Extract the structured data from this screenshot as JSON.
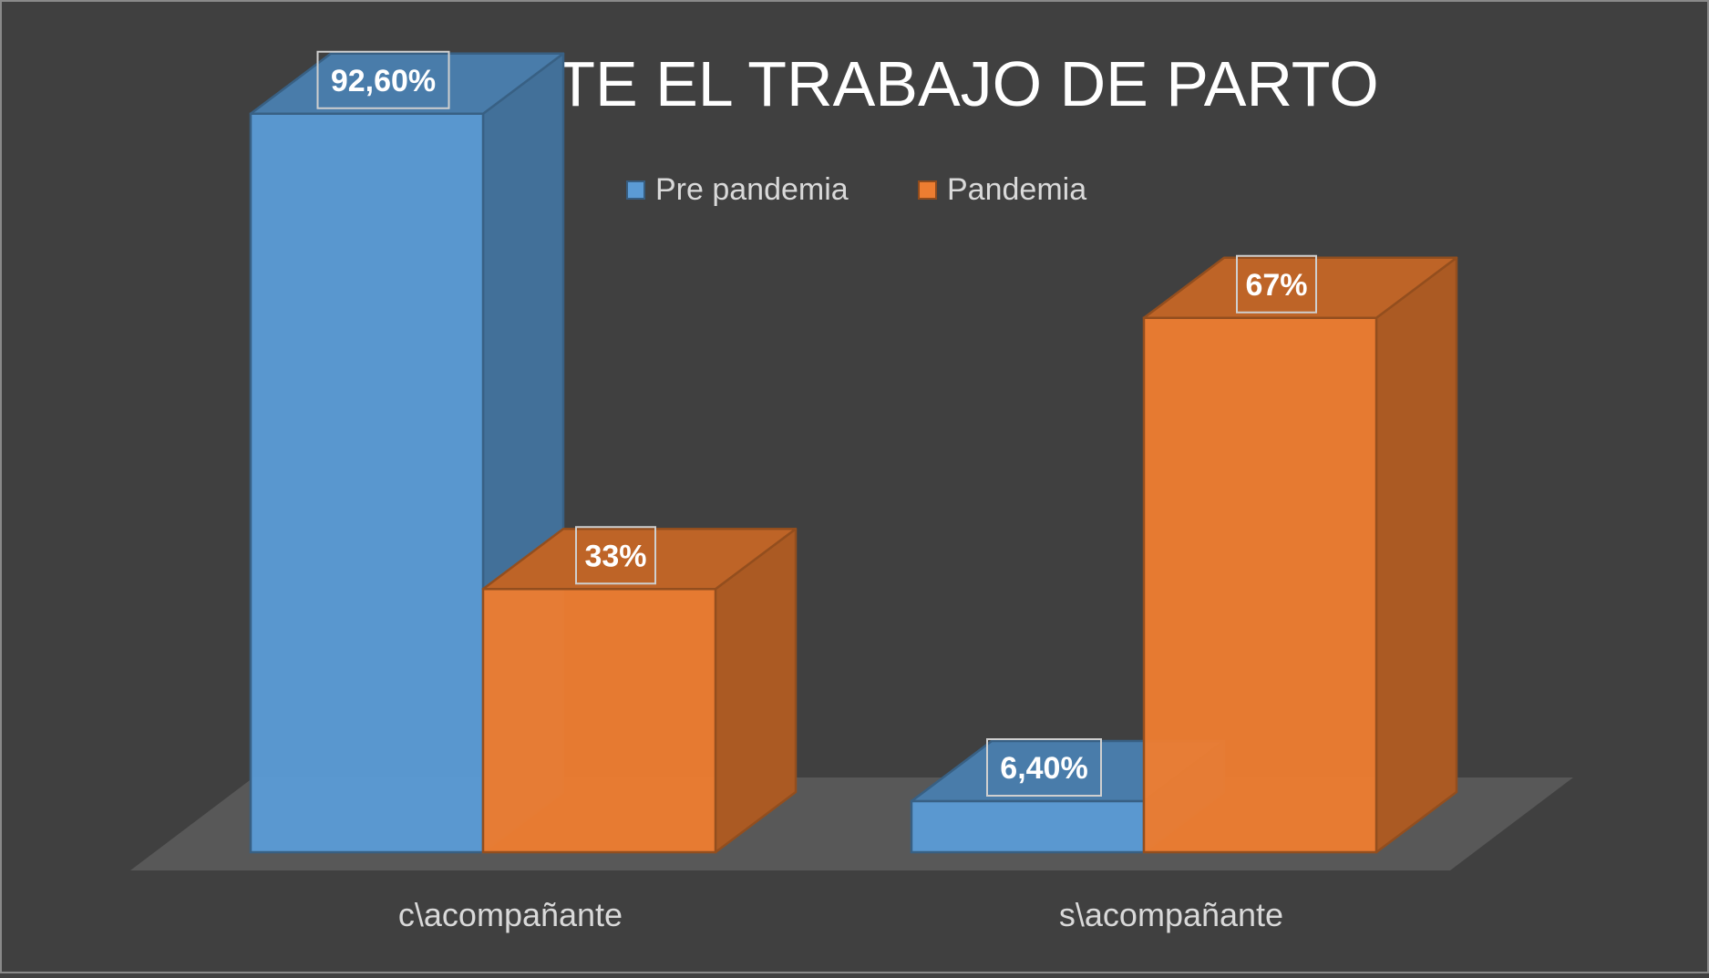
{
  "chart_data": {
    "type": "bar",
    "title": "DURANTE EL TRABAJO DE PARTO",
    "categories": [
      "c\\acompañante",
      "s\\acompañante"
    ],
    "series": [
      {
        "name": "Pre pandemia",
        "values": [
          92.6,
          6.4
        ],
        "labels": [
          "92,60%",
          "6,40%"
        ],
        "color": "#5b9bd5"
      },
      {
        "name": "Pandemia",
        "values": [
          33,
          67
        ],
        "labels": [
          "33%",
          "67%"
        ],
        "color": "#ed7d31"
      }
    ],
    "ylim": [
      0,
      100
    ],
    "legend_position": "top",
    "grid": false,
    "style": "3d-column"
  }
}
